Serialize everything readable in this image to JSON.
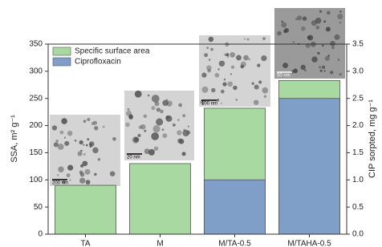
{
  "chart_data": {
    "type": "bar",
    "categories": [
      "TA",
      "M",
      "M/TA-0.5",
      "M/TAHA-0.5"
    ],
    "series": [
      {
        "name": "Specific surface area",
        "color": "#a8d9a0",
        "values": [
          90,
          130,
          232,
          283
        ]
      },
      {
        "name": "Ciprofloxacin",
        "color": "#7f9fc9",
        "axis": "y2",
        "values": [
          null,
          null,
          1.0,
          2.5
        ]
      }
    ],
    "ylabel": "SSA, m² g⁻¹",
    "y2label": "CIP sorpted, mg g⁻¹",
    "ylim": [
      0,
      350
    ],
    "yticks": [
      0,
      50,
      100,
      150,
      200,
      250,
      300,
      350
    ],
    "y2lim": [
      0,
      3.5
    ],
    "y2ticks": [
      {
        "value": 0,
        "label": "0.0"
      },
      {
        "value": 0.5,
        "label": "0.5"
      },
      {
        "value": 1,
        "label": "1.0"
      },
      {
        "value": 1.5,
        "label": "1.5"
      },
      {
        "value": 2,
        "label": "2.0"
      },
      {
        "value": 2.5,
        "label": "2.5"
      },
      {
        "value": 3,
        "label": "3.0"
      },
      {
        "value": 3.5,
        "label": "3.5"
      }
    ],
    "legend": "top-left",
    "annotations": [
      "200 nm",
      "20 nm",
      "100 nm",
      "50 nm"
    ]
  }
}
